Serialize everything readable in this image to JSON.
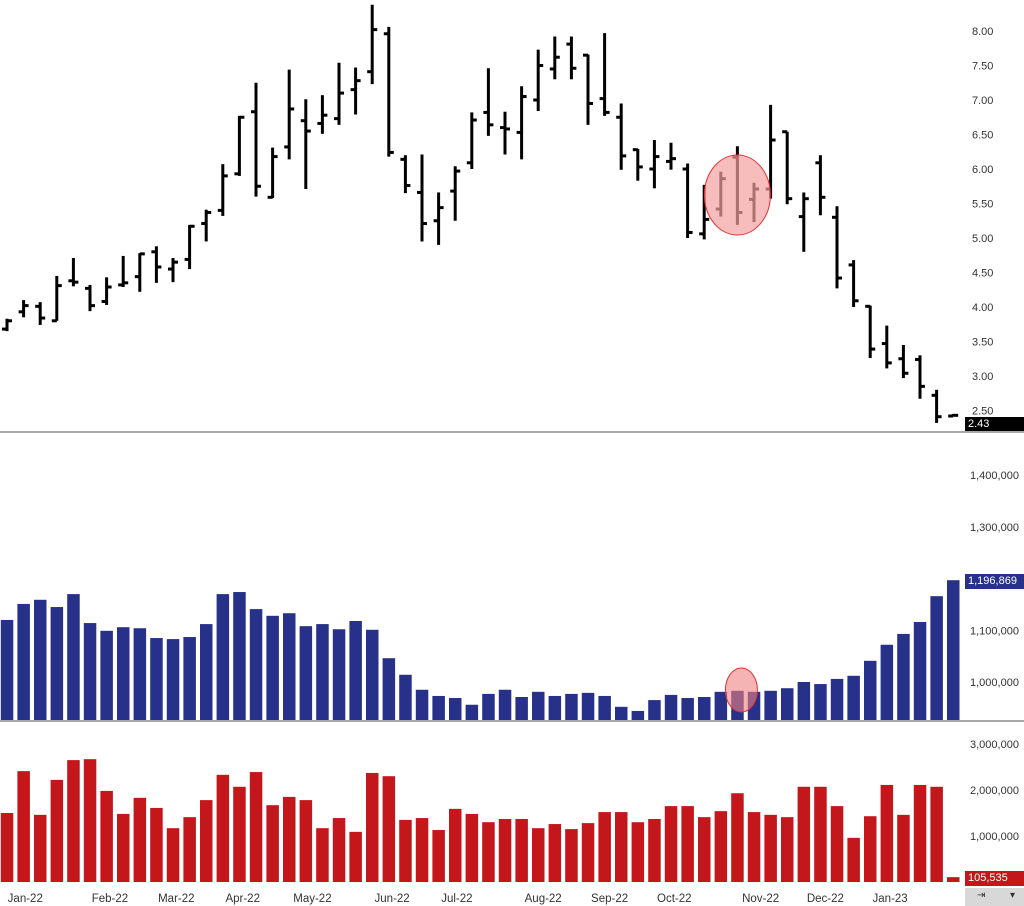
{
  "chart_data": [
    {
      "type": "ohlc",
      "title": "",
      "x_labels": [
        "Jan-22",
        "Feb-22",
        "Mar-22",
        "Apr-22",
        "May-22",
        "Jun-22",
        "Jul-22",
        "Aug-22",
        "Sep-22",
        "Oct-22",
        "Nov-22",
        "Dec-22",
        "Jan-23"
      ],
      "y_ticks": [
        "8.00",
        "7.50",
        "7.00",
        "6.50",
        "6.00",
        "5.50",
        "5.00",
        "4.50",
        "4.00",
        "3.50",
        "3.00",
        "2.50"
      ],
      "ylim": [
        2.3,
        8.45
      ],
      "last_value_label": "2.43",
      "bar_color": "#000000",
      "highlight_color": "#f4a0a0",
      "ohlc": [
        [
          3.68,
          3.83,
          3.65,
          3.8
        ],
        [
          3.93,
          4.1,
          3.85,
          4.02
        ],
        [
          4.01,
          4.07,
          3.74,
          3.84
        ],
        [
          3.8,
          4.45,
          3.8,
          4.31
        ],
        [
          4.38,
          4.71,
          4.3,
          4.36
        ],
        [
          4.27,
          4.32,
          3.94,
          4.02
        ],
        [
          4.08,
          4.43,
          4.03,
          4.29
        ],
        [
          4.32,
          4.74,
          4.29,
          4.35
        ],
        [
          4.44,
          4.78,
          4.22,
          4.77
        ],
        [
          4.8,
          4.88,
          4.35,
          4.58
        ],
        [
          4.55,
          4.71,
          4.36,
          4.65
        ],
        [
          4.69,
          5.19,
          4.55,
          5.17
        ],
        [
          5.21,
          5.41,
          4.95,
          5.37
        ],
        [
          5.4,
          6.07,
          5.32,
          5.9
        ],
        [
          5.93,
          6.77,
          5.9,
          6.75
        ],
        [
          6.83,
          7.25,
          5.6,
          5.75
        ],
        [
          5.59,
          6.31,
          5.58,
          6.18
        ],
        [
          6.32,
          7.44,
          6.14,
          6.87
        ],
        [
          6.7,
          7.01,
          5.71,
          6.55
        ],
        [
          6.66,
          7.07,
          6.51,
          6.78
        ],
        [
          6.73,
          7.54,
          6.64,
          7.1
        ],
        [
          7.15,
          7.47,
          6.79,
          7.28
        ],
        [
          7.41,
          8.38,
          7.23,
          8.02
        ],
        [
          7.96,
          8.06,
          6.18,
          6.24
        ],
        [
          6.14,
          6.2,
          5.65,
          5.76
        ],
        [
          5.66,
          6.21,
          4.95,
          5.21
        ],
        [
          5.25,
          5.66,
          4.9,
          5.44
        ],
        [
          5.68,
          6.04,
          5.25,
          5.97
        ],
        [
          6.09,
          6.82,
          6.0,
          6.71
        ],
        [
          6.82,
          7.46,
          6.48,
          6.64
        ],
        [
          6.6,
          6.83,
          6.21,
          6.58
        ],
        [
          6.53,
          7.2,
          6.14,
          7.05
        ],
        [
          7.0,
          7.73,
          6.84,
          7.5
        ],
        [
          7.45,
          7.92,
          7.3,
          7.62
        ],
        [
          7.81,
          7.92,
          7.3,
          7.46
        ],
        [
          7.65,
          7.66,
          6.64,
          6.95
        ],
        [
          7.02,
          7.97,
          6.77,
          6.82
        ],
        [
          6.75,
          6.95,
          5.99,
          6.19
        ],
        [
          6.28,
          6.29,
          5.83,
          6.03
        ],
        [
          6.0,
          6.42,
          5.72,
          6.18
        ],
        [
          6.11,
          6.38,
          5.99,
          6.15
        ],
        [
          6.0,
          6.08,
          5.0,
          5.08
        ],
        [
          5.06,
          5.77,
          4.98,
          5.27
        ],
        [
          5.42,
          5.96,
          5.31,
          5.86
        ],
        [
          6.17,
          6.33,
          5.19,
          5.37
        ],
        [
          5.56,
          5.8,
          5.23,
          5.71
        ],
        [
          5.71,
          6.93,
          5.57,
          6.42
        ],
        [
          6.54,
          6.54,
          5.49,
          5.57
        ],
        [
          5.31,
          5.66,
          4.8,
          5.57
        ],
        [
          6.09,
          6.2,
          5.33,
          5.59
        ],
        [
          5.3,
          5.46,
          4.27,
          4.42
        ],
        [
          4.61,
          4.68,
          4.0,
          4.09
        ],
        [
          4.01,
          4.02,
          3.26,
          3.39
        ],
        [
          3.47,
          3.73,
          3.11,
          3.19
        ],
        [
          3.25,
          3.45,
          2.97,
          3.04
        ],
        [
          3.24,
          3.3,
          2.67,
          2.85
        ],
        [
          2.72,
          2.8,
          2.32,
          2.41
        ],
        [
          2.42,
          2.45,
          2.42,
          2.43
        ]
      ],
      "highlight_bars": [
        43,
        44,
        45
      ]
    },
    {
      "type": "bar",
      "y_ticks": [
        "1,400,000",
        "1,300,000",
        "1,100,000",
        "1,000,000"
      ],
      "ylim": [
        925000,
        1430000
      ],
      "last_value_label": "1,196,869",
      "color": "#27318a",
      "values": [
        1120000,
        1151000,
        1159000,
        1145000,
        1170000,
        1114000,
        1099000,
        1106000,
        1104000,
        1085000,
        1083000,
        1087000,
        1112000,
        1170000,
        1174000,
        1141000,
        1128000,
        1133000,
        1108000,
        1112000,
        1102000,
        1118000,
        1101000,
        1046000,
        1014000,
        985000,
        973000,
        969000,
        956000,
        977000,
        985000,
        971000,
        981000,
        973000,
        977000,
        979000,
        973000,
        952000,
        944000,
        965000,
        975000,
        969000,
        971000,
        981000,
        983000,
        981000,
        983000,
        988000,
        1000000,
        996000,
        1006000,
        1012000,
        1041000,
        1072000,
        1093000,
        1116000,
        1166000,
        1196869
      ],
      "highlight_bars": [
        44
      ]
    },
    {
      "type": "bar",
      "y_ticks": [
        "3,000,000",
        "2,000,000",
        "1,000,000"
      ],
      "ylim": [
        0,
        3300000
      ],
      "last_value_label": "105,535",
      "color": "#c4171b",
      "values": [
        1500000,
        2410000,
        1460000,
        2220000,
        2650000,
        2670000,
        1980000,
        1480000,
        1830000,
        1610000,
        1170000,
        1410000,
        1780000,
        2330000,
        2070000,
        2390000,
        1670000,
        1850000,
        1780000,
        1170000,
        1390000,
        1090000,
        2370000,
        2300000,
        1350000,
        1390000,
        1130000,
        1590000,
        1480000,
        1300000,
        1370000,
        1370000,
        1170000,
        1260000,
        1150000,
        1280000,
        1520000,
        1520000,
        1300000,
        1370000,
        1650000,
        1650000,
        1410000,
        1540000,
        1930000,
        1520000,
        1460000,
        1410000,
        2070000,
        2070000,
        1650000,
        960000,
        1430000,
        2110000,
        1460000,
        2110000,
        2070000,
        105535
      ]
    }
  ],
  "controls": {
    "zoom_icon": "fit-scale-icon",
    "dropdown_icon": "chevron-down-icon",
    "zoom_glyph": "⇥",
    "dropdown_glyph": "▾"
  }
}
